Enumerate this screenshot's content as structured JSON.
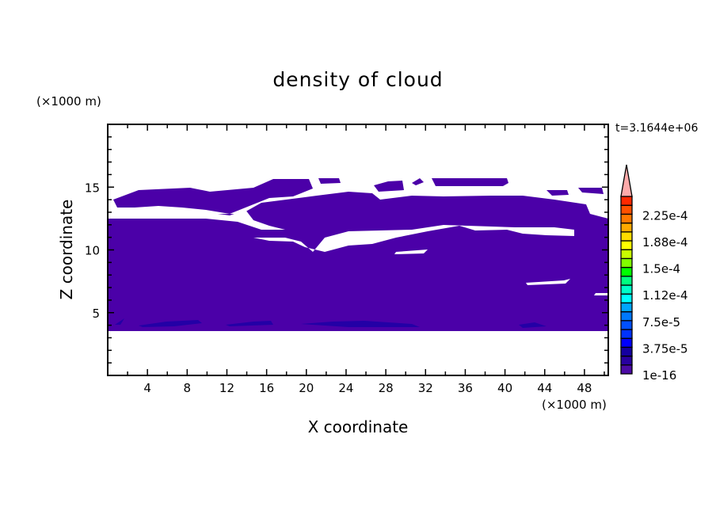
{
  "chart_data": {
    "type": "heatmap",
    "title": "density of cloud",
    "xlabel": "X coordinate",
    "ylabel": "Z coordinate",
    "x_unit": "(×1000 m)",
    "y_unit": "(×1000 m)",
    "time_label": "t=3.1644e+06",
    "xlim": [
      0,
      50.4
    ],
    "ylim": [
      0,
      20
    ],
    "x_ticks": [
      4,
      8,
      12,
      16,
      20,
      24,
      28,
      32,
      36,
      40,
      44,
      48
    ],
    "y_ticks": [
      5,
      10,
      15
    ],
    "colorbar": {
      "labels": [
        "1e-16",
        "3.75e-5",
        "7.5e-5",
        "1.12e-4",
        "1.5e-4",
        "1.88e-4",
        "2.25e-4"
      ],
      "colors": [
        "#4b0aa5",
        "#2800a0",
        "#1400a0",
        "#0000ff",
        "#0032ff",
        "#0050ff",
        "#0078ff",
        "#00a5ff",
        "#00ffff",
        "#00ffc8",
        "#00ff80",
        "#00ff00",
        "#80ff00",
        "#c8ff00",
        "#ffff00",
        "#ffdc00",
        "#ffaa00",
        "#ff7800",
        "#ff5000",
        "#ff2800",
        "#ff2d2d"
      ],
      "extend_color": "#ffaaaa",
      "extend": "max"
    },
    "fill_color": "#4b00a8",
    "dense_color": "#2300a6",
    "description_levels": "cloud density mostly at lowest level (1e-16 to 1.875e-5) between z≈3.5 and z≈15.5"
  }
}
